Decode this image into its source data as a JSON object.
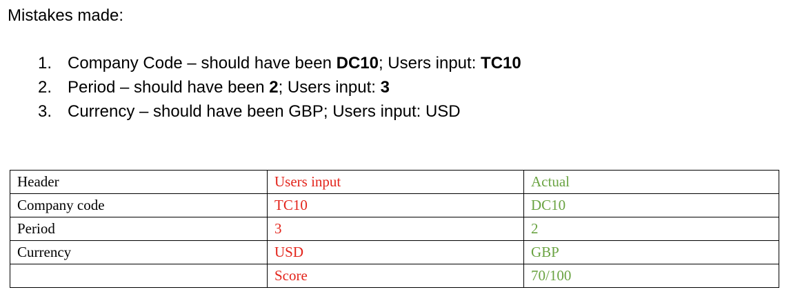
{
  "heading": "Mistakes made:",
  "mistakes": [
    {
      "number": "1.",
      "field": "Company Code",
      "dash": " – should have been ",
      "expected": "DC10",
      "separator": "; Users input: ",
      "actual": "TC10",
      "bold": true
    },
    {
      "number": "2.",
      "field": "Period",
      "dash": " – should have been ",
      "expected": "2",
      "separator": "; Users input: ",
      "actual": "3",
      "bold": true
    },
    {
      "number": "3.",
      "field": "Currency",
      "dash": " – should have been ",
      "expected": "GBP",
      "separator": "; Users input: ",
      "actual": "USD",
      "bold": false
    }
  ],
  "table": {
    "headers": {
      "header": "Header",
      "users_input": "Users input",
      "actual": "Actual"
    },
    "rows": [
      {
        "header": "Company code",
        "users_input": "TC10",
        "actual": "DC10"
      },
      {
        "header": "Period",
        "users_input": "3",
        "actual": "2"
      },
      {
        "header": "Currency",
        "users_input": "USD",
        "actual": "GBP"
      },
      {
        "header": "",
        "users_input": "Score",
        "actual": "70/100"
      }
    ]
  },
  "colors": {
    "users_input": "#e3241b",
    "actual": "#6aa342"
  }
}
